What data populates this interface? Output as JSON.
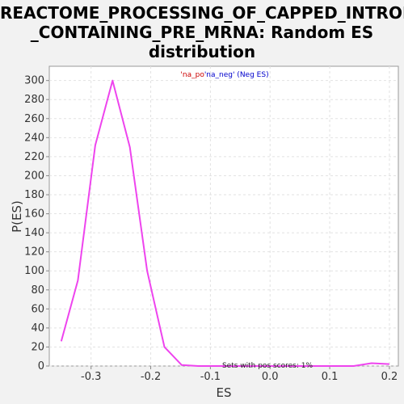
{
  "title_lines": [
    "REACTOME_PROCESSING_OF_CAPPED_INTRON",
    "_CONTAINING_PRE_MRNA: Random ES",
    "distribution"
  ],
  "legend": {
    "pos_label": "'na_po",
    "neg_label": "'na_neg' (Neg ES)",
    "pos_color": "#cc0000",
    "neg_color": "#0000cc"
  },
  "annotation": "Sets with pos scores: 1%",
  "chart_data": {
    "type": "line",
    "title": "REACTOME_PROCESSING_OF_CAPPED_INTRON_CONTAINING_PRE_MRNA: Random ES distribution",
    "xlabel": "ES",
    "ylabel": "P(ES)",
    "xlim": [
      -0.37,
      0.215
    ],
    "ylim": [
      0,
      315
    ],
    "x_ticks": [
      -0.3,
      -0.2,
      -0.1,
      0.0,
      0.1,
      0.2
    ],
    "x_tick_labels": [
      "-0.3",
      "-0.2",
      "-0.1",
      "0.0",
      "0.1",
      "0.2"
    ],
    "y_ticks": [
      0,
      20,
      40,
      60,
      80,
      100,
      120,
      140,
      160,
      180,
      200,
      220,
      240,
      260,
      280,
      300
    ],
    "y_tick_labels": [
      "0",
      "20",
      "40",
      "60",
      "80",
      "100",
      "120",
      "140",
      "160",
      "180",
      "200",
      "220",
      "240",
      "260",
      "280",
      "300"
    ],
    "grid": true,
    "legend_position": "top-center",
    "line_color": "#ee44ee",
    "series": [
      {
        "values_x": [
          -0.35,
          -0.322,
          -0.293,
          -0.264,
          -0.235,
          -0.206,
          -0.177,
          -0.148,
          -0.12,
          -0.09,
          -0.06,
          -0.03,
          0.0,
          0.03,
          0.06,
          0.09,
          0.12,
          0.14,
          0.17,
          0.2
        ],
        "values_y": [
          26,
          90,
          232,
          300,
          230,
          100,
          20,
          1,
          0,
          0,
          0,
          0,
          0,
          0,
          0,
          0,
          0,
          0,
          3,
          2
        ]
      }
    ]
  }
}
